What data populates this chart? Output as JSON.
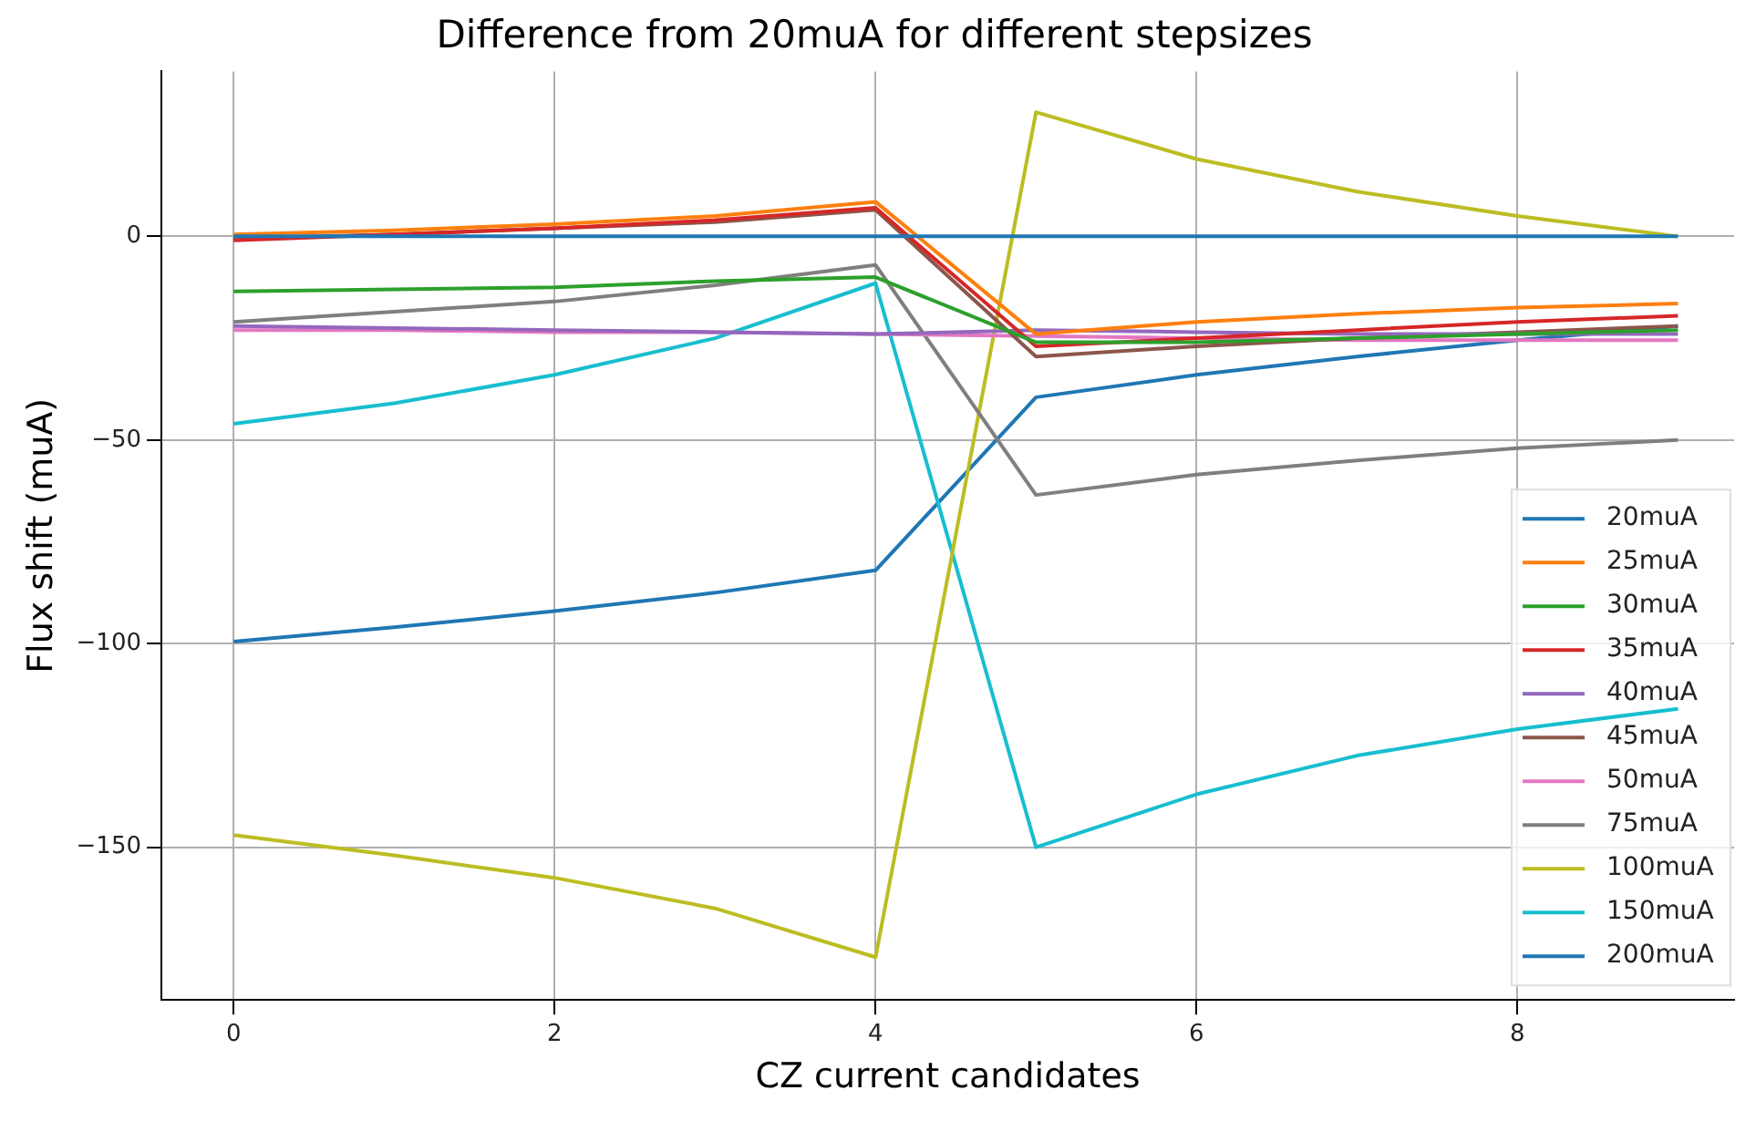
{
  "chart_data": {
    "type": "line",
    "title": "Difference from 20muA for different stepsizes",
    "xlabel": "CZ current candidates",
    "ylabel": "Flux shift (muA)",
    "x": [
      0,
      1,
      2,
      3,
      4,
      5,
      6,
      7,
      8,
      9
    ],
    "xlim": [
      -0.45,
      9.35
    ],
    "xticks": [
      0,
      2,
      4,
      6,
      8
    ],
    "ylim": [
      -187.5,
      40.5
    ],
    "yticks": [
      -150,
      -100,
      -50,
      0
    ],
    "grid": true,
    "legend": "bottom right",
    "marker": "none",
    "line_style": "solid",
    "series": [
      {
        "name": "20muA",
        "color": "#1f77b4",
        "values": [
          0,
          0,
          0,
          0,
          0,
          0,
          0,
          0,
          0,
          0
        ]
      },
      {
        "name": "25muA",
        "color": "#ff7f0e",
        "values": [
          0.5,
          1.5,
          3,
          5,
          8.5,
          -24,
          -21,
          -19,
          -17.5,
          -16.5
        ]
      },
      {
        "name": "30muA",
        "color": "#2ca02c",
        "values": [
          -13.5,
          -13,
          -12.5,
          -11,
          -10,
          -26,
          -26,
          -25,
          -24,
          -23
        ]
      },
      {
        "name": "35muA",
        "color": "#d62728",
        "values": [
          -1,
          0.5,
          2,
          4,
          7,
          -27,
          -25,
          -23,
          -21,
          -19.5
        ]
      },
      {
        "name": "40muA",
        "color": "#9467bd",
        "values": [
          -22,
          -22.5,
          -23,
          -23.5,
          -24,
          -23,
          -23.5,
          -24,
          -24,
          -24
        ]
      },
      {
        "name": "45muA",
        "color": "#8c564b",
        "values": [
          -0.5,
          0.5,
          2,
          3.5,
          6.5,
          -29.5,
          -27,
          -25,
          -23.5,
          -22
        ]
      },
      {
        "name": "50muA",
        "color": "#e377c2",
        "values": [
          -23,
          -23,
          -23.5,
          -23.5,
          -24,
          -24.5,
          -25,
          -25.5,
          -25.5,
          -25.5
        ]
      },
      {
        "name": "75muA",
        "color": "#7f7f7f",
        "values": [
          -21,
          -18.5,
          -16,
          -12,
          -7,
          -63.5,
          -58.5,
          -55,
          -52,
          -50
        ]
      },
      {
        "name": "100muA",
        "color": "#bcbd22",
        "values": [
          -147,
          -152,
          -157.5,
          -165,
          -177,
          30.5,
          19,
          11,
          5,
          0
        ]
      },
      {
        "name": "150muA",
        "color": "#17becf",
        "values": [
          -46,
          -41,
          -34,
          -25,
          -11.5,
          -150,
          -137,
          -127.5,
          -121,
          -116
        ]
      },
      {
        "name": "200muA",
        "color": "#1f77b4",
        "values": [
          -99.5,
          -96,
          -92,
          -87.5,
          -82,
          -39.5,
          -34,
          -29.5,
          -25.5,
          -22
        ]
      }
    ]
  }
}
